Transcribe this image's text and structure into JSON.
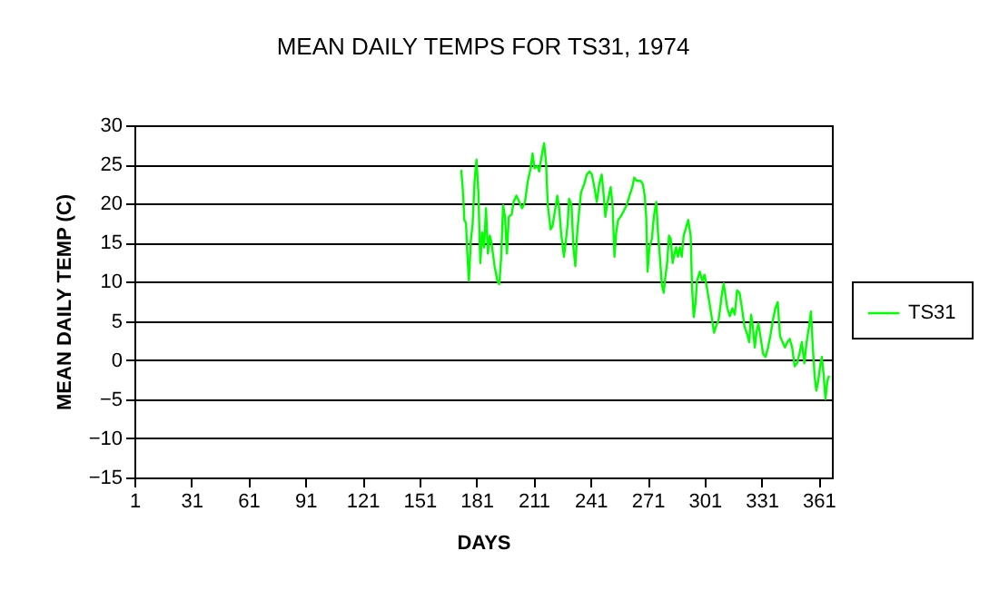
{
  "chart_data": {
    "type": "line",
    "title": "MEAN DAILY TEMPS FOR TS31, 1974",
    "xlabel": "DAYS",
    "ylabel": "MEAN DAILY TEMP (C)",
    "xlim": [
      1,
      368
    ],
    "xticks": [
      1,
      31,
      61,
      91,
      121,
      151,
      181,
      211,
      241,
      271,
      301,
      331,
      361
    ],
    "ylim": [
      -15,
      30
    ],
    "yticks": [
      -15,
      -10,
      -5,
      0,
      5,
      10,
      15,
      20,
      25,
      30
    ],
    "grid": "y",
    "legend": "right",
    "marker": "none",
    "line_style": "solid",
    "series": [
      {
        "name": "TS31",
        "color": "#00ff00",
        "x": [
          173,
          174,
          174.6,
          175.5,
          176,
          177,
          178,
          179,
          180,
          181,
          182,
          183,
          184,
          185,
          186,
          187,
          188,
          189,
          190.5,
          192,
          193,
          194,
          195,
          196,
          197,
          198,
          199.5,
          200.5,
          202,
          203.5,
          205,
          206.5,
          208,
          209.5,
          210.5,
          211.5,
          213,
          214,
          215.5,
          216.6,
          217.6,
          218.5,
          220,
          221,
          222.5,
          223.5,
          224.5,
          225.5,
          227,
          228,
          229,
          229.7,
          231,
          232,
          233,
          234,
          235,
          236,
          237.7,
          239,
          240.5,
          241.7,
          243,
          244.3,
          245.6,
          246.9,
          247.8,
          248.8,
          249.7,
          250.7,
          251.6,
          252.6,
          253.6,
          254.5,
          255.5,
          256.8,
          258.4,
          260,
          261.5,
          263,
          264,
          265.4,
          267.3,
          268.5,
          269.5,
          270.3,
          271,
          272,
          273.3,
          274.3,
          275.6,
          276.5,
          277.5,
          278.5,
          279.5,
          280.3,
          281.3,
          282.3,
          283.2,
          284.2,
          285.2,
          286,
          287,
          288,
          289,
          290,
          291,
          292.4,
          293.7,
          294.4,
          295.3,
          296.3,
          297,
          298.5,
          299.8,
          301,
          302.2,
          303.5,
          304.8,
          306,
          307,
          308.3,
          309.2,
          310.2,
          311.1,
          312,
          313,
          314.3,
          315.6,
          316.9,
          318.1,
          319.4,
          320.7,
          322,
          323.2,
          324.5,
          325.5,
          326.4,
          327.4,
          328.3,
          329.3,
          330.6,
          331.8,
          333.1,
          334.4,
          335.6,
          336.9,
          338.2,
          339.5,
          340.7,
          342,
          343.3,
          344.6,
          345.8,
          347.1,
          348.4,
          349.7,
          350.9,
          352.2,
          353.5,
          354.7,
          356,
          357,
          357.9,
          358.9,
          359.8,
          360.8,
          361.8,
          362.7,
          363.7,
          364.6,
          365.6,
          366.5
        ],
        "values": [
          24.3,
          21,
          17.9,
          17.5,
          14.4,
          10.1,
          15.2,
          17.5,
          22.9,
          25.6,
          21.4,
          12.4,
          16.3,
          14.4,
          19.4,
          13.6,
          15.9,
          14.8,
          12,
          10.1,
          9.7,
          13.2,
          19.8,
          18.3,
          13.6,
          18.3,
          18.6,
          20.2,
          21,
          20.2,
          19.4,
          20.2,
          22.9,
          24.5,
          26.4,
          24.5,
          24.8,
          24.1,
          26.4,
          27.7,
          25.2,
          19.8,
          16.7,
          17.1,
          19.4,
          21,
          19.4,
          16.3,
          13.2,
          15.2,
          17.5,
          20.6,
          19.8,
          14.4,
          12,
          16.3,
          19,
          21.4,
          22.5,
          23.7,
          24.1,
          23.7,
          22.1,
          20.2,
          22.5,
          23.7,
          21.4,
          18.3,
          19.8,
          21,
          22.1,
          19.8,
          13.2,
          16.3,
          17.9,
          18.3,
          19,
          19.8,
          21,
          22.1,
          23.3,
          22.9,
          22.9,
          22.5,
          21,
          18.3,
          11.3,
          14.4,
          15.5,
          18.3,
          20.2,
          16.3,
          13.2,
          9.7,
          8.6,
          10.5,
          12.4,
          15.9,
          15.5,
          12.4,
          13.6,
          14.4,
          13.2,
          14.4,
          13.2,
          15.9,
          16.7,
          17.9,
          15.9,
          9.3,
          5.5,
          7.4,
          10.1,
          11.3,
          10.1,
          10.9,
          9.3,
          7.4,
          5.4,
          3.5,
          4.3,
          5,
          6.6,
          8.6,
          9.8,
          8.2,
          6.6,
          5.6,
          6.6,
          5.8,
          8.9,
          8.6,
          6.6,
          4.3,
          3.5,
          2.3,
          5.8,
          4.3,
          1.6,
          3.5,
          4.7,
          2.7,
          0.8,
          0.4,
          1.6,
          3.1,
          5,
          6.6,
          7.4,
          3.1,
          2.3,
          1.6,
          2.3,
          2.7,
          1.6,
          -0.8,
          -0.4,
          0.8,
          2.3,
          -0.4,
          2.3,
          4.3,
          6.2,
          1.9,
          -2,
          -3.9,
          -2.7,
          -0.8,
          0.4,
          -2,
          -5,
          -2.7,
          -2
        ]
      }
    ]
  }
}
